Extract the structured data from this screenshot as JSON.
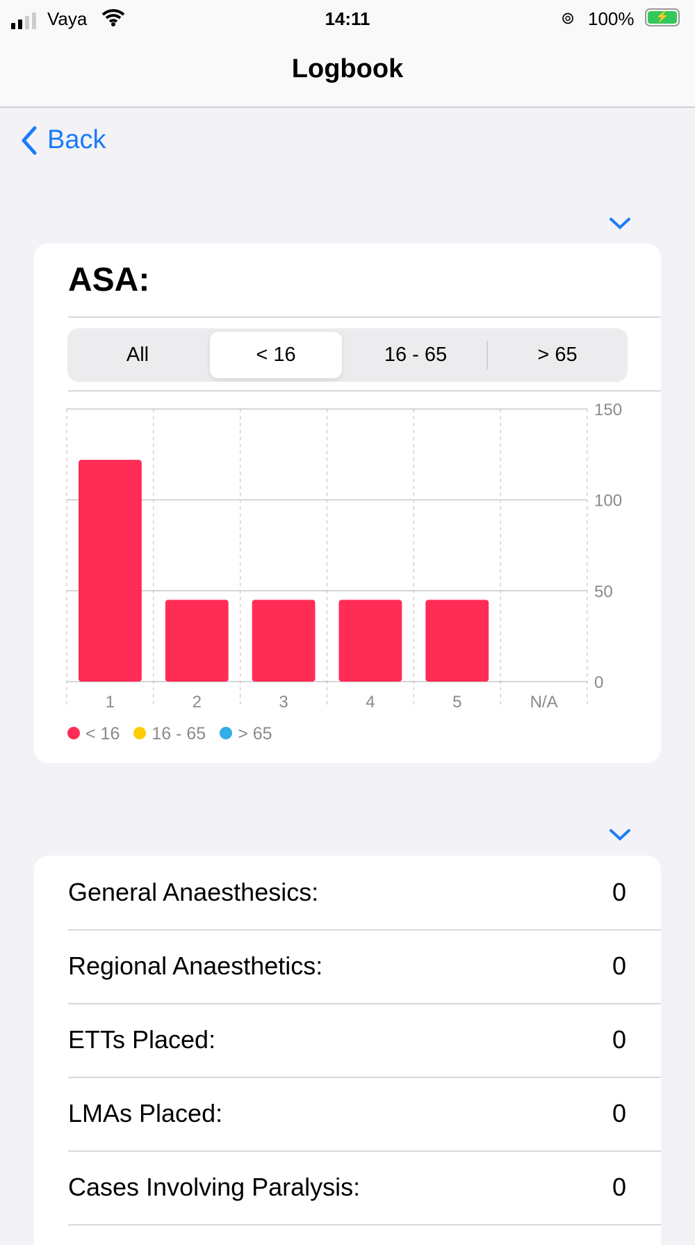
{
  "status_bar": {
    "carrier": "Vaya",
    "time": "14:11",
    "battery": "100%",
    "icons": [
      "signal-icon",
      "wifi-icon",
      "rotation-lock-icon",
      "battery-charging-icon"
    ]
  },
  "nav": {
    "title": "Logbook",
    "back_label": "Back"
  },
  "asa_card": {
    "title": "ASA:",
    "segments": [
      "All",
      "< 16",
      "16 - 65",
      "> 65"
    ],
    "selected_segment": "< 16"
  },
  "chart_data": {
    "type": "bar",
    "categories": [
      "1",
      "2",
      "3",
      "4",
      "5",
      "N/A"
    ],
    "series": [
      {
        "name": "< 16",
        "values": [
          122,
          45,
          45,
          45,
          45,
          0
        ],
        "color": "#ff2d55"
      }
    ],
    "legend": [
      {
        "label": "< 16",
        "color": "#ff2d55"
      },
      {
        "label": "16 - 65",
        "color": "#ffcc00"
      },
      {
        "label": "> 65",
        "color": "#32ade6"
      }
    ],
    "ylim": [
      0,
      150
    ],
    "yticks": [
      "0",
      "50",
      "100",
      "150"
    ],
    "grid": true,
    "legend_position": "bottom-left"
  },
  "stats": [
    {
      "label": "General Anaesthesics:",
      "value": "0"
    },
    {
      "label": "Regional Anaesthetics:",
      "value": "0"
    },
    {
      "label": "ETTs Placed:",
      "value": "0"
    },
    {
      "label": "LMAs Placed:",
      "value": "0"
    },
    {
      "label": "Cases Involving Paralysis:",
      "value": "0"
    }
  ],
  "colors": {
    "accent": "#1a7cf5",
    "bar": "#ff2d55"
  }
}
